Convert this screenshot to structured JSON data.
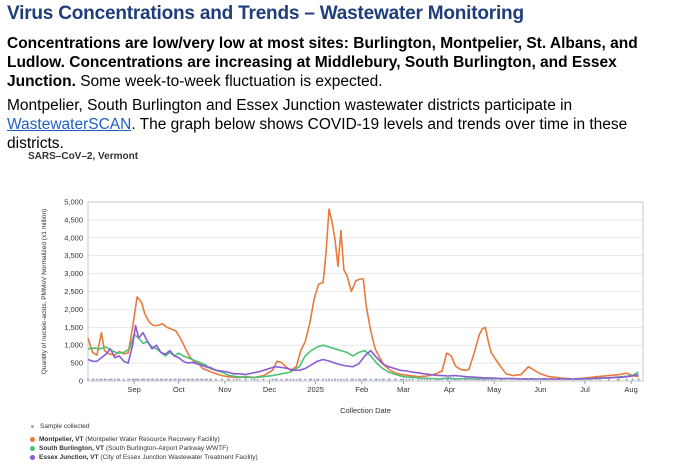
{
  "header": {
    "title": "Virus Concentrations and Trends – Wastewater Monitoring"
  },
  "summary": {
    "bold_text": "Concentrations are low/very low at most sites: Burlington, Montpelier, St. Albans, and Ludlow. Concentrations are increasing at Middlebury, South Burlington, and Essex Junction.",
    "normal_text": " Some week-to-week fluctuation is expected."
  },
  "participation": {
    "before_link": "Montpelier, South Burlington and Essex Junction wastewater districts participate in ",
    "link_text": "WastewaterSCAN",
    "after_link": ". The graph below shows COVID-19 levels and trends over time in these districts."
  },
  "colors": {
    "montpelier": "#e87a3c",
    "south_burlington": "#4cc276",
    "essex": "#8c5bd4",
    "sample_dot": "#9aa0c8",
    "grid": "#dddddd",
    "axis": "#666666"
  },
  "chart_data": {
    "type": "line",
    "title": "SARS–CoV–2, Vermont",
    "xlabel": "Collection Date",
    "ylabel": "Quantity of nucleic-acids, PMMoV Normalized (x1 million)",
    "ylim": [
      0,
      5000
    ],
    "y_ticks": [
      "0",
      "500",
      "1,000",
      "1,500",
      "2,000",
      "2,500",
      "3,000",
      "3,500",
      "4,000",
      "4,500",
      "5,000"
    ],
    "y_tick_values": [
      0,
      500,
      1000,
      1500,
      2000,
      2500,
      3000,
      3500,
      4000,
      4500,
      5000
    ],
    "x_ticks": [
      "Sep",
      "Oct",
      "Nov",
      "Dec",
      "2025",
      "Feb",
      "Mar",
      "Apr",
      "May",
      "Jun",
      "Jul",
      "Aug"
    ],
    "x_tick_days": [
      31,
      61,
      92,
      122,
      153,
      184,
      212,
      243,
      273,
      304,
      334,
      365
    ],
    "x_start": "2024-08-01",
    "x_end": "2025-08-10",
    "legend": {
      "sample_collected": "Sample collected",
      "items": [
        {
          "name": "Montpelier, VT",
          "detail": "(Montpelier Water Resource Recovery Facility)"
        },
        {
          "name": "South Burlington, VT",
          "detail": "(South Burlington-Airport Parkway WWTF)"
        },
        {
          "name": "Essex Junction, VT",
          "detail": "(City of Essex Junction Wastewater Treatment Facility)"
        }
      ]
    },
    "series": [
      {
        "name": "Montpelier, VT",
        "points": [
          [
            0,
            1200
          ],
          [
            3,
            800
          ],
          [
            6,
            720
          ],
          [
            9,
            1350
          ],
          [
            11,
            850
          ],
          [
            14,
            760
          ],
          [
            18,
            720
          ],
          [
            21,
            820
          ],
          [
            24,
            760
          ],
          [
            27,
            780
          ],
          [
            30,
            1500
          ],
          [
            33,
            2350
          ],
          [
            36,
            2200
          ],
          [
            38,
            1900
          ],
          [
            41,
            1650
          ],
          [
            44,
            1550
          ],
          [
            47,
            1550
          ],
          [
            50,
            1600
          ],
          [
            53,
            1500
          ],
          [
            56,
            1450
          ],
          [
            59,
            1400
          ],
          [
            62,
            1200
          ],
          [
            65,
            950
          ],
          [
            68,
            700
          ],
          [
            71,
            550
          ],
          [
            74,
            500
          ],
          [
            77,
            350
          ],
          [
            80,
            300
          ],
          [
            83,
            250
          ],
          [
            86,
            200
          ],
          [
            90,
            150
          ],
          [
            94,
            120
          ],
          [
            100,
            100
          ],
          [
            106,
            120
          ],
          [
            112,
            100
          ],
          [
            118,
            150
          ],
          [
            124,
            300
          ],
          [
            127,
            550
          ],
          [
            130,
            520
          ],
          [
            133,
            400
          ],
          [
            136,
            300
          ],
          [
            140,
            400
          ],
          [
            143,
            850
          ],
          [
            146,
            1100
          ],
          [
            149,
            1600
          ],
          [
            152,
            2300
          ],
          [
            155,
            2700
          ],
          [
            158,
            2750
          ],
          [
            160,
            3600
          ],
          [
            162,
            4800
          ],
          [
            164,
            4450
          ],
          [
            166,
            3950
          ],
          [
            168,
            3200
          ],
          [
            170,
            4200
          ],
          [
            172,
            3100
          ],
          [
            174,
            2950
          ],
          [
            177,
            2500
          ],
          [
            180,
            2800
          ],
          [
            183,
            2850
          ],
          [
            185,
            2850
          ],
          [
            187,
            2100
          ],
          [
            190,
            1400
          ],
          [
            193,
            900
          ],
          [
            196,
            650
          ],
          [
            199,
            450
          ],
          [
            203,
            300
          ],
          [
            207,
            220
          ],
          [
            211,
            180
          ],
          [
            216,
            150
          ],
          [
            222,
            120
          ],
          [
            228,
            140
          ],
          [
            234,
            200
          ],
          [
            238,
            280
          ],
          [
            241,
            780
          ],
          [
            244,
            700
          ],
          [
            247,
            420
          ],
          [
            250,
            330
          ],
          [
            253,
            300
          ],
          [
            256,
            320
          ],
          [
            260,
            850
          ],
          [
            263,
            1300
          ],
          [
            265,
            1450
          ],
          [
            267,
            1500
          ],
          [
            269,
            1100
          ],
          [
            271,
            800
          ],
          [
            274,
            600
          ],
          [
            277,
            420
          ],
          [
            281,
            200
          ],
          [
            286,
            150
          ],
          [
            291,
            180
          ],
          [
            296,
            400
          ],
          [
            300,
            300
          ],
          [
            304,
            200
          ],
          [
            310,
            120
          ],
          [
            318,
            80
          ],
          [
            326,
            60
          ],
          [
            334,
            80
          ],
          [
            342,
            120
          ],
          [
            350,
            150
          ],
          [
            357,
            180
          ],
          [
            362,
            220
          ],
          [
            366,
            150
          ],
          [
            370,
            120
          ]
        ]
      },
      {
        "name": "South Burlington, VT",
        "points": [
          [
            0,
            900
          ],
          [
            4,
            920
          ],
          [
            8,
            900
          ],
          [
            12,
            950
          ],
          [
            16,
            850
          ],
          [
            20,
            780
          ],
          [
            24,
            800
          ],
          [
            28,
            900
          ],
          [
            31,
            1300
          ],
          [
            34,
            1200
          ],
          [
            37,
            1050
          ],
          [
            40,
            1100
          ],
          [
            43,
            950
          ],
          [
            46,
            900
          ],
          [
            49,
            800
          ],
          [
            52,
            700
          ],
          [
            55,
            800
          ],
          [
            58,
            700
          ],
          [
            61,
            780
          ],
          [
            64,
            700
          ],
          [
            67,
            650
          ],
          [
            70,
            600
          ],
          [
            73,
            550
          ],
          [
            76,
            500
          ],
          [
            79,
            450
          ],
          [
            82,
            350
          ],
          [
            86,
            300
          ],
          [
            90,
            250
          ],
          [
            95,
            150
          ],
          [
            100,
            120
          ],
          [
            106,
            100
          ],
          [
            112,
            100
          ],
          [
            118,
            120
          ],
          [
            124,
            150
          ],
          [
            130,
            200
          ],
          [
            136,
            250
          ],
          [
            142,
            400
          ],
          [
            146,
            700
          ],
          [
            150,
            850
          ],
          [
            154,
            950
          ],
          [
            158,
            1000
          ],
          [
            162,
            950
          ],
          [
            166,
            900
          ],
          [
            170,
            850
          ],
          [
            174,
            800
          ],
          [
            178,
            700
          ],
          [
            182,
            800
          ],
          [
            186,
            850
          ],
          [
            190,
            700
          ],
          [
            194,
            500
          ],
          [
            198,
            350
          ],
          [
            202,
            250
          ],
          [
            207,
            180
          ],
          [
            212,
            120
          ],
          [
            218,
            100
          ],
          [
            224,
            80
          ],
          [
            230,
            70
          ],
          [
            236,
            60
          ],
          [
            242,
            80
          ],
          [
            248,
            60
          ],
          [
            254,
            70
          ],
          [
            260,
            60
          ],
          [
            266,
            60
          ],
          [
            272,
            70
          ],
          [
            278,
            60
          ],
          [
            284,
            70
          ],
          [
            290,
            60
          ],
          [
            296,
            50
          ],
          [
            302,
            60
          ],
          [
            308,
            50
          ],
          [
            314,
            50
          ],
          [
            320,
            50
          ],
          [
            326,
            60
          ],
          [
            332,
            50
          ],
          [
            338,
            60
          ],
          [
            344,
            80
          ],
          [
            350,
            90
          ],
          [
            356,
            110
          ],
          [
            362,
            130
          ],
          [
            366,
            160
          ],
          [
            370,
            250
          ]
        ]
      },
      {
        "name": "Essex Junction, VT",
        "points": [
          [
            0,
            600
          ],
          [
            3,
            550
          ],
          [
            6,
            550
          ],
          [
            9,
            650
          ],
          [
            12,
            750
          ],
          [
            15,
            900
          ],
          [
            18,
            650
          ],
          [
            21,
            700
          ],
          [
            24,
            550
          ],
          [
            27,
            500
          ],
          [
            30,
            1000
          ],
          [
            32,
            1550
          ],
          [
            34,
            1200
          ],
          [
            37,
            1350
          ],
          [
            40,
            1100
          ],
          [
            43,
            900
          ],
          [
            46,
            1000
          ],
          [
            49,
            800
          ],
          [
            52,
            750
          ],
          [
            55,
            850
          ],
          [
            58,
            700
          ],
          [
            61,
            650
          ],
          [
            64,
            550
          ],
          [
            67,
            500
          ],
          [
            70,
            520
          ],
          [
            73,
            480
          ],
          [
            76,
            450
          ],
          [
            79,
            400
          ],
          [
            82,
            380
          ],
          [
            86,
            300
          ],
          [
            90,
            280
          ],
          [
            94,
            250
          ],
          [
            98,
            200
          ],
          [
            102,
            200
          ],
          [
            106,
            180
          ],
          [
            110,
            220
          ],
          [
            114,
            250
          ],
          [
            118,
            300
          ],
          [
            122,
            350
          ],
          [
            126,
            400
          ],
          [
            130,
            380
          ],
          [
            134,
            350
          ],
          [
            138,
            300
          ],
          [
            142,
            300
          ],
          [
            146,
            350
          ],
          [
            150,
            450
          ],
          [
            154,
            550
          ],
          [
            158,
            600
          ],
          [
            162,
            560
          ],
          [
            166,
            500
          ],
          [
            170,
            450
          ],
          [
            174,
            420
          ],
          [
            178,
            400
          ],
          [
            182,
            480
          ],
          [
            186,
            700
          ],
          [
            190,
            850
          ],
          [
            194,
            650
          ],
          [
            198,
            480
          ],
          [
            202,
            400
          ],
          [
            206,
            350
          ],
          [
            210,
            300
          ],
          [
            214,
            280
          ],
          [
            218,
            250
          ],
          [
            222,
            230
          ],
          [
            226,
            200
          ],
          [
            230,
            180
          ],
          [
            234,
            160
          ],
          [
            238,
            150
          ],
          [
            242,
            140
          ],
          [
            246,
            150
          ],
          [
            250,
            140
          ],
          [
            254,
            120
          ],
          [
            258,
            110
          ],
          [
            262,
            100
          ],
          [
            266,
            90
          ],
          [
            272,
            80
          ],
          [
            278,
            70
          ],
          [
            284,
            70
          ],
          [
            290,
            60
          ],
          [
            296,
            60
          ],
          [
            302,
            55
          ],
          [
            308,
            60
          ],
          [
            314,
            50
          ],
          [
            320,
            55
          ],
          [
            326,
            60
          ],
          [
            332,
            60
          ],
          [
            338,
            70
          ],
          [
            344,
            80
          ],
          [
            350,
            90
          ],
          [
            356,
            100
          ],
          [
            362,
            120
          ],
          [
            366,
            140
          ],
          [
            370,
            180
          ]
        ]
      }
    ]
  }
}
